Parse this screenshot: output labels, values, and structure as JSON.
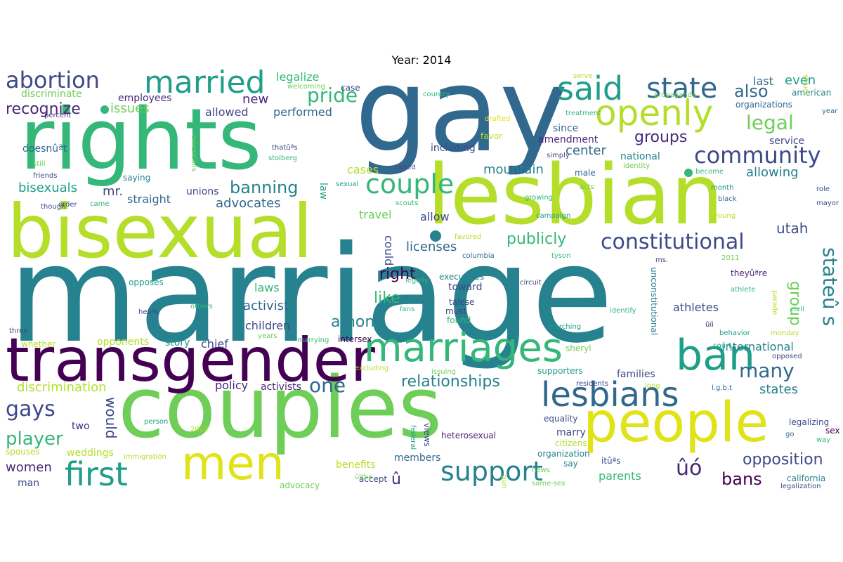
{
  "title": "Year: 2014",
  "colors": {
    "c1": "#440154",
    "c2": "#482878",
    "c3": "#3e4989",
    "c4": "#31688e",
    "c5": "#26828e",
    "c6": "#1f9e89",
    "c7": "#35b779",
    "c8": "#6ece58",
    "c9": "#b5de2b",
    "c10": "#dfe318"
  },
  "words": {
    "marriage": "marriage",
    "gay": "gay",
    "rights": "rights",
    "lesbian": "lesbian",
    "bisexual": "bisexual",
    "couples": "couples",
    "transgender": "transgender",
    "people": "people",
    "men": "men",
    "marriages": "marriages",
    "ban": "ban",
    "married": "married",
    "openly": "openly",
    "said": "said",
    "state": "state",
    "abortion": "abortion",
    "lesbians": "lesbians",
    "first": "first",
    "support": "support",
    "couple": "couple",
    "community": "community",
    "constitutional": "constitutional",
    "also": "also",
    "legal": "legal",
    "pride": "pride",
    "recognize": "recognize",
    "issues": "issues",
    "groups": "groups",
    "one": "one",
    "gays": "gays",
    "player": "player",
    "many": "many",
    "bans": "bans",
    "opposition": "opposition",
    "glyph_a": "ûó",
    "glyph_b": "û",
    "state_s": "stateû s",
    "group": "group",
    "banning": "banning",
    "relationships": "relationships",
    "publicly": "publicly",
    "right": "right",
    "like": "like",
    "among": "among",
    "discrimination": "discrimination",
    "women": "women",
    "would": "would",
    "utah": "utah",
    "mountain": "mountain",
    "center": "center",
    "allowing": "allowing",
    "even": "even",
    "last": "last",
    "activist": "activist",
    "licenses": "licenses",
    "bisexuals": "bisexuals",
    "advocates": "advocates",
    "mr": "mr.",
    "new": "new",
    "cases": "cases",
    "travel": "travel",
    "legalize": "legalize",
    "performed": "performed",
    "allowed": "allowed",
    "including": "including",
    "employees": "employees",
    "discriminate": "discriminate",
    "straight": "straight",
    "unions": "unions",
    "law": "law",
    "laws": "laws",
    "children": "children",
    "chief": "chief",
    "opponents": "opponents",
    "story": "story",
    "could": "could",
    "allow": "allow",
    "athletes": "athletes",
    "international": "international",
    "states": "states",
    "families": "families",
    "policy": "policy",
    "activists": "activists",
    "since": "since",
    "amendment": "amendment",
    "national": "national",
    "service": "service",
    "organizations": "organizations",
    "american": "american",
    "two": "two",
    "weddings": "weddings",
    "man": "man",
    "spouses": "spouses",
    "benefits": "benefits",
    "members": "members",
    "accept": "accept",
    "parents": "parents",
    "marry": "marry",
    "equality": "equality",
    "citizens": "citizens",
    "organization": "organization",
    "say": "say",
    "views": "views",
    "heterosexual": "heterosexual",
    "executives": "executives",
    "toward": "toward",
    "must": "must",
    "found": "found",
    "talese": "talese",
    "favor": "favor",
    "male": "male",
    "whether": "whether",
    "case": "case",
    "country": "country",
    "saying": "saying",
    "friends": "friends",
    "still": "still",
    "doesnt": "doesnûªt",
    "california": "california",
    "legalizing": "legalizing",
    "sex": "sex",
    "legalization": "legalization",
    "court": "court",
    "sheryl": "sheryl",
    "supporters": "supporters",
    "identity": "identity",
    "long": "long",
    "month": "month",
    "black": "black",
    "role": "role",
    "mayor": "mayor",
    "years": "years",
    "three": "three",
    "intersex": "intersex",
    "marrying": "marrying",
    "theyre": "theyûªre",
    "become": "become",
    "year": "year",
    "treatment": "treatment",
    "propaganda": "propaganda",
    "welcoming": "welcoming",
    "serve": "serve",
    "americans": "americans",
    "drafted": "drafted",
    "thats": "thatûªs",
    "stolberg": "stolberg",
    "simply": "simply",
    "acts": "acts",
    "called": "called",
    "percent": "percent",
    "though": "though",
    "order": "order",
    "came": "came",
    "sexual": "sexual",
    "scouts": "scouts",
    "favored": "favored",
    "growing": "growing",
    "campaign": "campaign",
    "columbia": "columbia",
    "tyson": "tyson",
    "ms": "ms.",
    "civil": "civil",
    "parade": "parade",
    "athlete": "athlete",
    "behavior": "behavior",
    "monday": "monday",
    "identify": "identify",
    "marching": "marching",
    "opposes": "opposes",
    "legally": "legally",
    "fans": "fans",
    "others": "others",
    "hes": "heûªs",
    "circuit": "circuit",
    "unconstitutional": "unconstitutional",
    "opposed": "opposed",
    "excluding": "excluding",
    "issuing": "issuing",
    "federal": "federal",
    "residents": "residents",
    "lgbt": "l.g.b.t",
    "young": "young",
    "go": "go",
    "way": "way",
    "immigration": "immigration",
    "person": "person",
    "n2012": "2012",
    "n2011": "2011",
    "advocacy": "advocacy",
    "same_sex": "same-sex",
    "news": "news",
    "gun": "gun",
    "its": "itûªs",
    "struck": "struck",
    "denying": "denying",
    "uthe": "ûïthe",
    "ui": "ûïi",
    "small1": "ûïthe"
  }
}
